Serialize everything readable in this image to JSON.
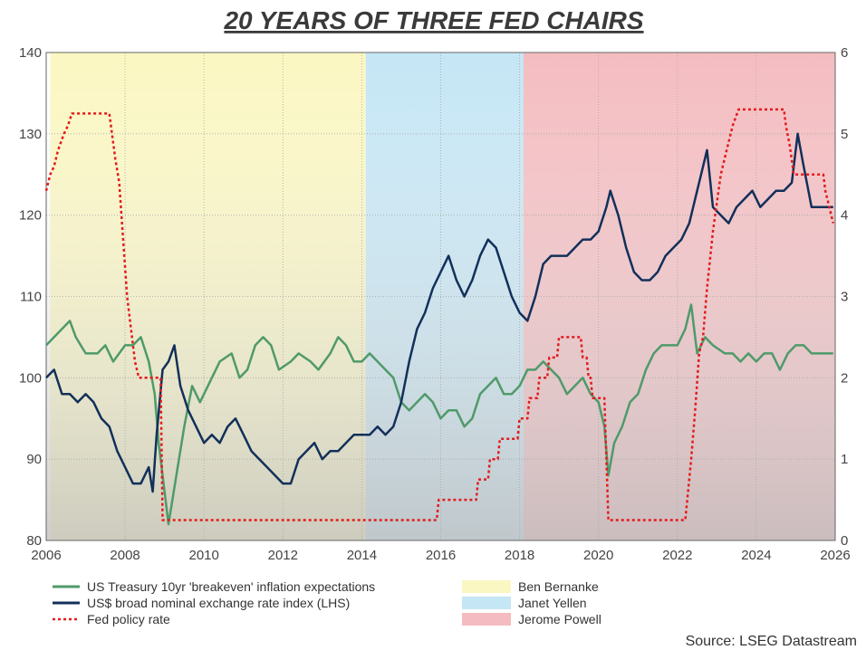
{
  "chart_data": {
    "type": "line",
    "title": "20 YEARS OF THREE FED CHAIRS",
    "source": "Source: LSEG Datastream",
    "x_ticks": [
      "2006",
      "2008",
      "2010",
      "2012",
      "2014",
      "2016",
      "2018",
      "2020",
      "2022",
      "2024",
      "2026"
    ],
    "xlim": [
      2006,
      2026
    ],
    "ylim_left": [
      80,
      140
    ],
    "ylim_right": [
      0,
      6
    ],
    "left_ticks": [
      "80",
      "90",
      "100",
      "110",
      "120",
      "130",
      "140"
    ],
    "right_ticks": [
      "0",
      "1",
      "2",
      "3",
      "4",
      "5",
      "6"
    ],
    "colors": {
      "breakeven": "#4f9a6a",
      "usd": "#12305a",
      "fed": "#e41a1c",
      "bernanke": "#fbf7c2",
      "yellen": "#c5e6f5",
      "powell": "#f4bcc0",
      "grid": "#a8a8a8"
    },
    "eras": [
      {
        "name": "Ben Bernanke",
        "start": 2006.1,
        "end": 2014.1,
        "color": "#fbf7c2"
      },
      {
        "name": "Janet Yellen",
        "start": 2014.1,
        "end": 2018.1,
        "color": "#c5e6f5"
      },
      {
        "name": "Jerome Powell",
        "start": 2018.1,
        "end": 2026.0,
        "color": "#f4bcc0"
      }
    ],
    "series": [
      {
        "name": "US Treasury 10yr 'breakeven' inflation expectations",
        "axis": "left",
        "x": [
          2006.0,
          2006.2,
          2006.4,
          2006.6,
          2006.75,
          2007.0,
          2007.3,
          2007.5,
          2007.7,
          2008.0,
          2008.2,
          2008.4,
          2008.6,
          2008.75,
          2008.85,
          2008.95,
          2009.1,
          2009.3,
          2009.5,
          2009.7,
          2009.9,
          2010.2,
          2010.4,
          2010.7,
          2010.9,
          2011.1,
          2011.3,
          2011.5,
          2011.7,
          2011.9,
          2012.2,
          2012.4,
          2012.7,
          2012.9,
          2013.2,
          2013.4,
          2013.6,
          2013.8,
          2014.0,
          2014.2,
          2014.4,
          2014.6,
          2014.8,
          2015.0,
          2015.2,
          2015.4,
          2015.6,
          2015.8,
          2016.0,
          2016.2,
          2016.4,
          2016.6,
          2016.8,
          2017.0,
          2017.2,
          2017.4,
          2017.6,
          2017.8,
          2018.0,
          2018.2,
          2018.4,
          2018.6,
          2018.8,
          2019.0,
          2019.2,
          2019.4,
          2019.6,
          2019.8,
          2020.0,
          2020.15,
          2020.25,
          2020.4,
          2020.6,
          2020.8,
          2021.0,
          2021.2,
          2021.4,
          2021.6,
          2021.8,
          2022.0,
          2022.2,
          2022.35,
          2022.5,
          2022.7,
          2022.9,
          2023.2,
          2023.4,
          2023.6,
          2023.8,
          2024.0,
          2024.2,
          2024.4,
          2024.6,
          2024.8,
          2025.0,
          2025.2,
          2025.4,
          2025.6,
          2025.8,
          2025.95
        ],
        "values": [
          104,
          105,
          106,
          107,
          105,
          103,
          103,
          104,
          102,
          104,
          104,
          105,
          102,
          98,
          92,
          88,
          82,
          88,
          94,
          99,
          97,
          100,
          102,
          103,
          100,
          101,
          104,
          105,
          104,
          101,
          102,
          103,
          102,
          101,
          103,
          105,
          104,
          102,
          102,
          103,
          102,
          101,
          100,
          97,
          96,
          97,
          98,
          97,
          95,
          96,
          96,
          94,
          95,
          98,
          99,
          100,
          98,
          98,
          99,
          101,
          101,
          102,
          101,
          100,
          98,
          99,
          100,
          98,
          97,
          94,
          88,
          92,
          94,
          97,
          98,
          101,
          103,
          104,
          104,
          104,
          106,
          109,
          103,
          105,
          104,
          103,
          103,
          102,
          103,
          102,
          103,
          103,
          101,
          103,
          104,
          104,
          103,
          103,
          103,
          103
        ]
      },
      {
        "name": "US$ broad nominal exchange rate index (LHS)",
        "axis": "left",
        "x": [
          2006.0,
          2006.2,
          2006.4,
          2006.6,
          2006.8,
          2007.0,
          2007.2,
          2007.4,
          2007.6,
          2007.8,
          2008.0,
          2008.2,
          2008.4,
          2008.6,
          2008.7,
          2008.8,
          2008.95,
          2009.1,
          2009.25,
          2009.4,
          2009.6,
          2009.8,
          2010.0,
          2010.2,
          2010.4,
          2010.6,
          2010.8,
          2011.0,
          2011.2,
          2011.4,
          2011.6,
          2011.8,
          2012.0,
          2012.2,
          2012.4,
          2012.6,
          2012.8,
          2013.0,
          2013.2,
          2013.4,
          2013.6,
          2013.8,
          2014.0,
          2014.2,
          2014.4,
          2014.6,
          2014.8,
          2015.0,
          2015.2,
          2015.4,
          2015.6,
          2015.8,
          2016.0,
          2016.2,
          2016.4,
          2016.6,
          2016.8,
          2017.0,
          2017.2,
          2017.4,
          2017.6,
          2017.8,
          2018.0,
          2018.2,
          2018.4,
          2018.6,
          2018.8,
          2019.0,
          2019.2,
          2019.4,
          2019.6,
          2019.8,
          2020.0,
          2020.2,
          2020.3,
          2020.5,
          2020.7,
          2020.9,
          2021.1,
          2021.3,
          2021.5,
          2021.7,
          2021.9,
          2022.1,
          2022.3,
          2022.5,
          2022.75,
          2022.9,
          2023.1,
          2023.3,
          2023.5,
          2023.7,
          2023.9,
          2024.1,
          2024.3,
          2024.5,
          2024.7,
          2024.9,
          2025.05,
          2025.2,
          2025.4,
          2025.6,
          2025.8,
          2025.95
        ],
        "values": [
          100,
          101,
          98,
          98,
          97,
          98,
          97,
          95,
          94,
          91,
          89,
          87,
          87,
          89,
          86,
          93,
          101,
          102,
          104,
          99,
          96,
          94,
          92,
          93,
          92,
          94,
          95,
          93,
          91,
          90,
          89,
          88,
          87,
          87,
          90,
          91,
          92,
          90,
          91,
          91,
          92,
          93,
          93,
          93,
          94,
          93,
          94,
          97,
          102,
          106,
          108,
          111,
          113,
          115,
          112,
          110,
          112,
          115,
          117,
          116,
          113,
          110,
          108,
          107,
          110,
          114,
          115,
          115,
          115,
          116,
          117,
          117,
          118,
          121,
          123,
          120,
          116,
          113,
          112,
          112,
          113,
          115,
          116,
          117,
          119,
          123,
          128,
          121,
          120,
          119,
          121,
          122,
          123,
          121,
          122,
          123,
          123,
          124,
          130,
          126,
          121,
          121,
          121,
          121
        ]
      },
      {
        "name": "Fed policy rate",
        "axis": "right",
        "x": [
          2006.0,
          2006.1,
          2006.2,
          2006.3,
          2006.45,
          2006.55,
          2006.65,
          2007.6,
          2007.75,
          2007.85,
          2008.05,
          2008.2,
          2008.25,
          2008.35,
          2008.9,
          2008.95,
          2015.9,
          2015.95,
          2016.9,
          2016.95,
          2017.2,
          2017.25,
          2017.45,
          2017.5,
          2017.95,
          2018.0,
          2018.2,
          2018.25,
          2018.45,
          2018.5,
          2018.7,
          2018.75,
          2018.95,
          2019.0,
          2019.55,
          2019.6,
          2019.7,
          2019.75,
          2019.8,
          2019.85,
          2020.15,
          2020.2,
          2020.25,
          2022.2,
          2022.25,
          2022.35,
          2022.45,
          2022.55,
          2022.65,
          2022.75,
          2022.9,
          2023.1,
          2023.25,
          2023.4,
          2023.55,
          2024.7,
          2024.75,
          2024.85,
          2024.95,
          2025.7,
          2025.75,
          2025.85,
          2025.95
        ],
        "values": [
          4.3,
          4.5,
          4.6,
          4.8,
          5.0,
          5.1,
          5.25,
          5.25,
          4.7,
          4.4,
          3.0,
          2.4,
          2.2,
          2.0,
          2.0,
          0.25,
          0.25,
          0.5,
          0.5,
          0.75,
          0.75,
          1.0,
          1.0,
          1.25,
          1.25,
          1.5,
          1.5,
          1.75,
          1.75,
          2.0,
          2.0,
          2.25,
          2.25,
          2.5,
          2.5,
          2.25,
          2.25,
          2.0,
          2.0,
          1.75,
          1.75,
          1.0,
          0.25,
          0.25,
          0.5,
          1.0,
          1.6,
          2.3,
          2.5,
          3.1,
          3.8,
          4.5,
          4.8,
          5.1,
          5.3,
          5.3,
          5.1,
          4.85,
          4.5,
          4.5,
          4.3,
          4.1,
          3.9
        ]
      }
    ]
  }
}
